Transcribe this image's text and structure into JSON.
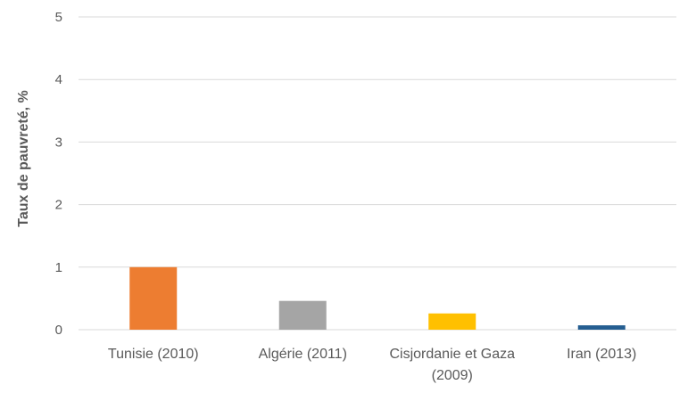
{
  "chart_data": {
    "type": "bar",
    "title": "",
    "xlabel": "",
    "ylabel": "Taux de pauvreté, %",
    "ylim": [
      0,
      5
    ],
    "yticks": [
      0,
      1,
      2,
      3,
      4,
      5
    ],
    "grid": true,
    "legend": "none",
    "categories": [
      [
        "Tunisie (2010)"
      ],
      [
        "Algérie (2011)"
      ],
      [
        "Cisjordanie et Gaza",
        "(2009)"
      ],
      [
        "Iran (2013)"
      ]
    ],
    "values": [
      1.0,
      0.46,
      0.26,
      0.07
    ],
    "colors": [
      "#ED7D31",
      "#A5A5A5",
      "#FFC000",
      "#255E91"
    ]
  },
  "style": {
    "grid_color": "#D9D9D9",
    "axis_color": "#D9D9D9",
    "text_color": "#595959"
  }
}
